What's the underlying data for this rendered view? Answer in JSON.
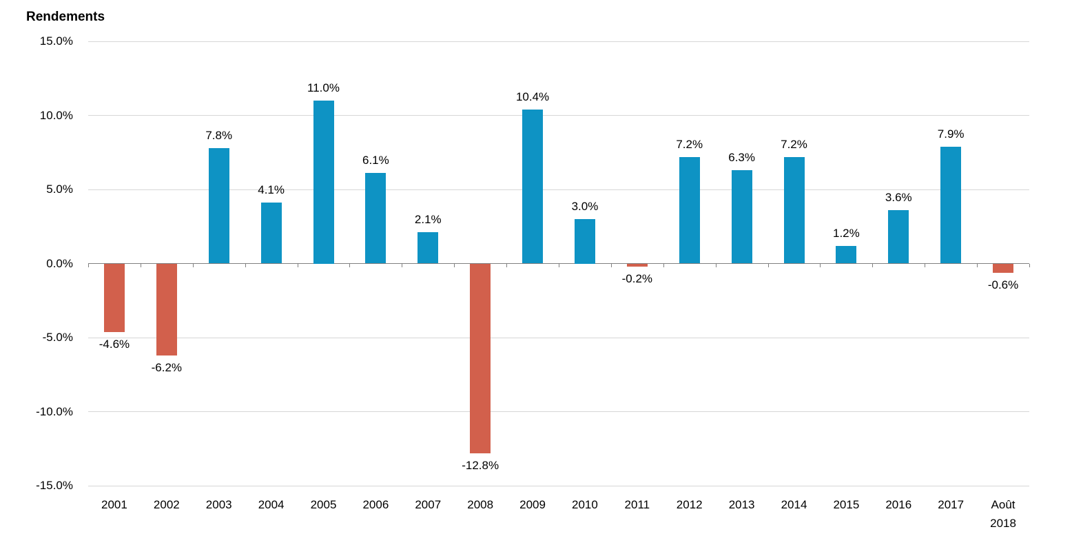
{
  "title": "Rendements",
  "colors": {
    "positive_bar": "#0e93c4",
    "negative_bar": "#d2604c",
    "gridline": "#d6d6d6",
    "axis": "#7f7f7f",
    "text": "#000000"
  },
  "chart_data": {
    "type": "bar",
    "title": "Rendements",
    "categories": [
      "2001",
      "2002",
      "2003",
      "2004",
      "2005",
      "2006",
      "2007",
      "2008",
      "2009",
      "2010",
      "2011",
      "2012",
      "2013",
      "2014",
      "2015",
      "2016",
      "2017",
      "Août 2018"
    ],
    "values": [
      -4.6,
      -6.2,
      7.8,
      4.1,
      11.0,
      6.1,
      2.1,
      -12.8,
      10.4,
      3.0,
      -0.2,
      7.2,
      6.3,
      7.2,
      1.2,
      3.6,
      7.9,
      -0.6
    ],
    "value_labels": [
      "-4.6%",
      "-6.2%",
      "7.8%",
      "4.1%",
      "11.0%",
      "6.1%",
      "2.1%",
      "-12.8%",
      "10.4%",
      "3.0%",
      "-0.2%",
      "7.2%",
      "6.3%",
      "7.2%",
      "1.2%",
      "3.6%",
      "7.9%",
      "-0.6%"
    ],
    "xlabel": "",
    "ylabel": "",
    "ylim": [
      -15,
      15
    ],
    "yticks": [
      15,
      10,
      5,
      0,
      -5,
      -10,
      -15
    ],
    "ytick_labels": [
      "15.0%",
      "10.0%",
      "5.0%",
      "0.0%",
      "-5.0%",
      "-10.0%",
      "-15.0%"
    ],
    "grid": "horizontal",
    "legend": "none",
    "positive_color": "#0e93c4",
    "negative_color": "#d2604c"
  }
}
